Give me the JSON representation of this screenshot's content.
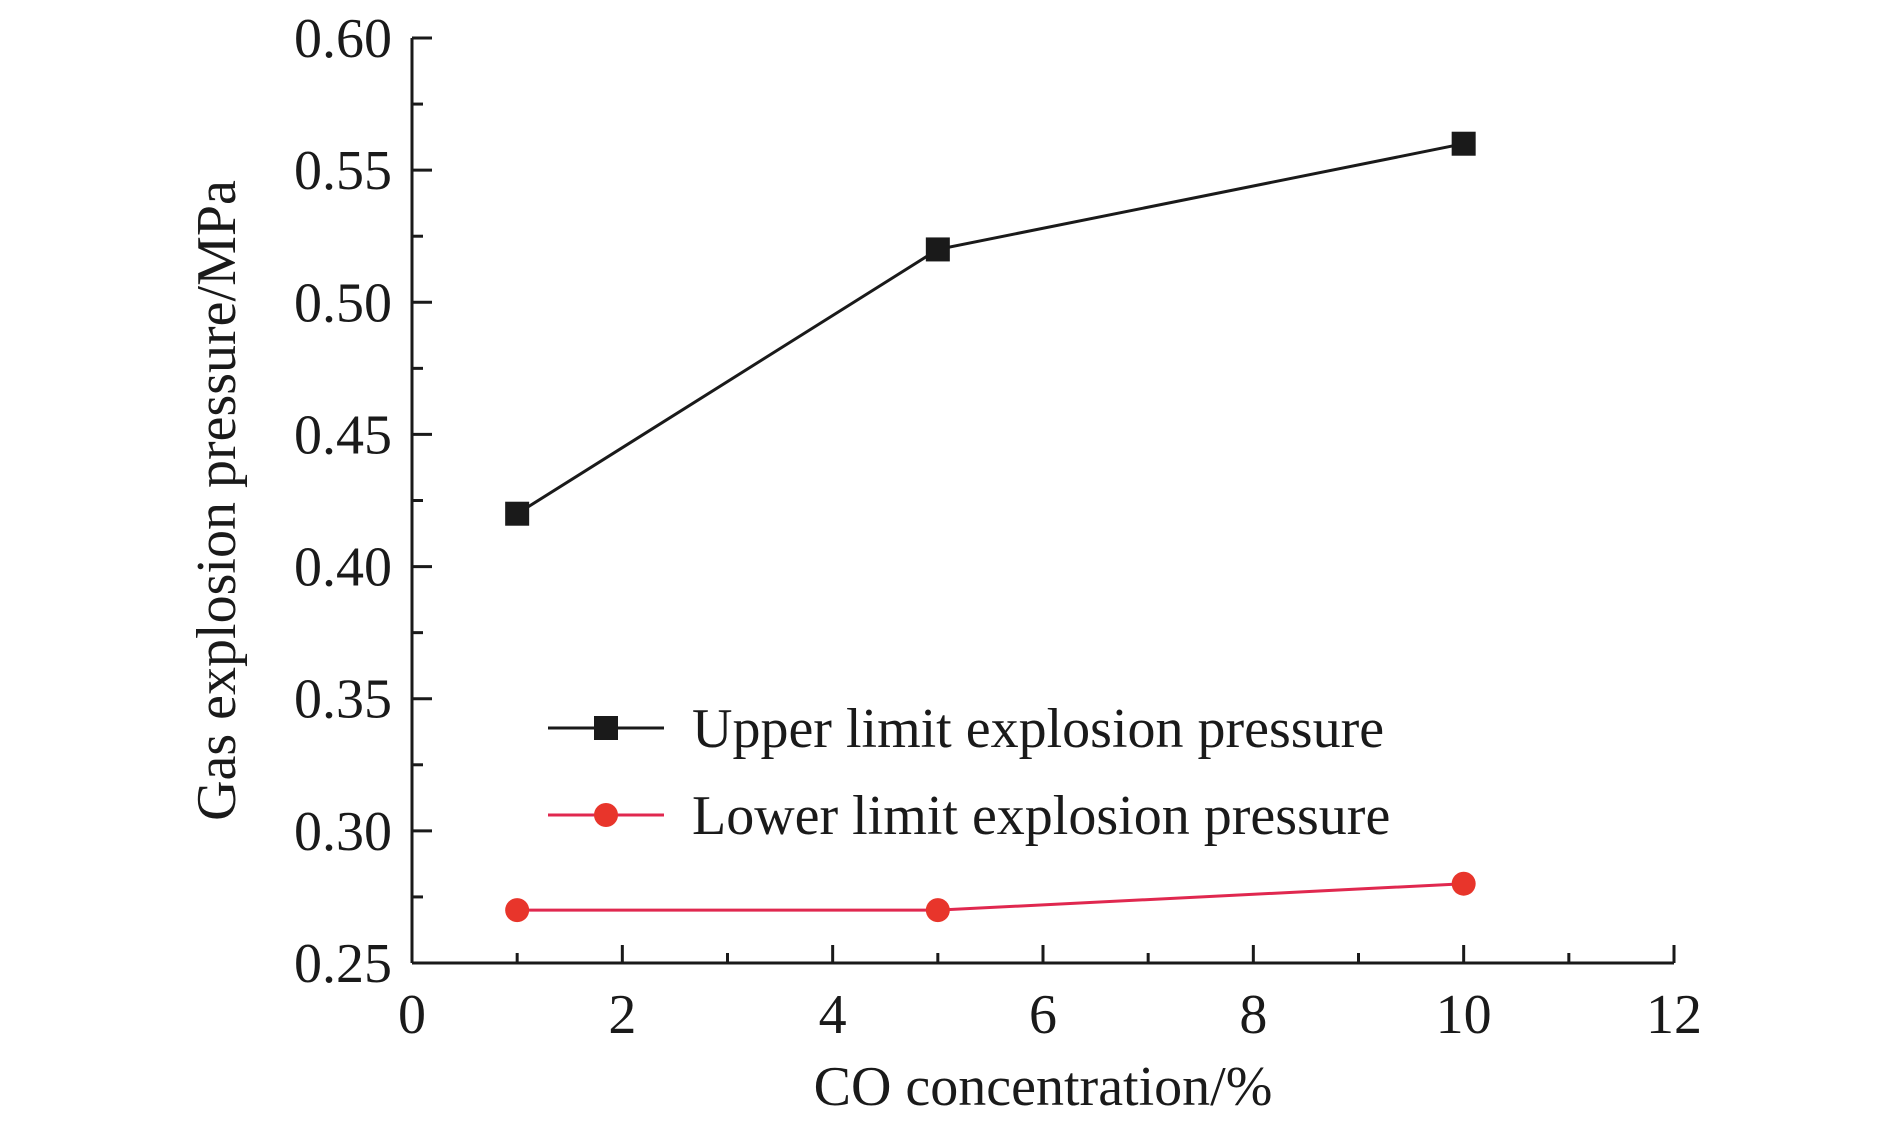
{
  "chart_data": {
    "type": "line",
    "title": "",
    "xlabel": "CO concentration/%",
    "ylabel": "Gas explosion pressure/MPa",
    "xlim": [
      0,
      12
    ],
    "ylim": [
      0.25,
      0.6
    ],
    "xticks": [
      0,
      2,
      4,
      6,
      8,
      10,
      12
    ],
    "xtick_labels": [
      "0",
      "2",
      "4",
      "6",
      "8",
      "10",
      "12"
    ],
    "yticks": [
      0.25,
      0.3,
      0.35,
      0.4,
      0.45,
      0.5,
      0.55,
      0.6
    ],
    "ytick_labels": [
      "0.25",
      "0.30",
      "0.35",
      "0.40",
      "0.45",
      "0.50",
      "0.55",
      "0.60"
    ],
    "legend_position": "center",
    "series": [
      {
        "name": "Upper limit explosion pressure",
        "marker": "square",
        "color": "#1a1a1a",
        "x": [
          1,
          5,
          10
        ],
        "y": [
          0.42,
          0.52,
          0.56
        ]
      },
      {
        "name": "Lower limit explosion pressure",
        "marker": "circle",
        "color": "#e0284f",
        "marker_color": "#e8352b",
        "x": [
          1,
          5,
          10
        ],
        "y": [
          0.27,
          0.27,
          0.28
        ]
      }
    ]
  }
}
